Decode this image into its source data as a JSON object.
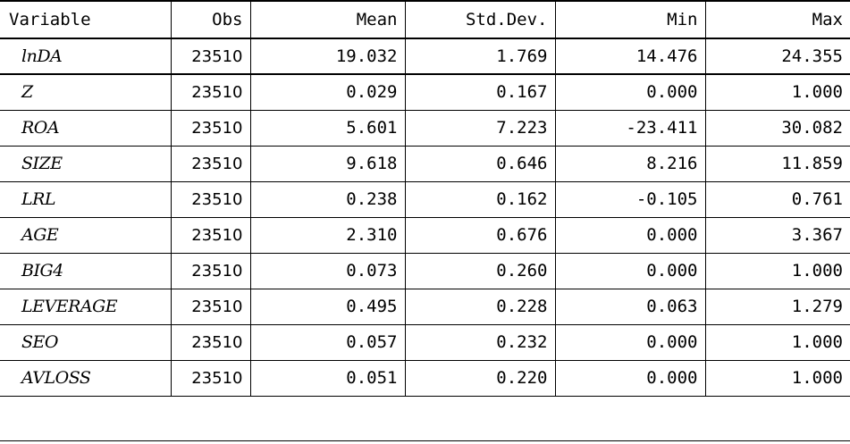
{
  "table": {
    "headers": [
      "Variable",
      "Obs",
      "Mean",
      "Std.Dev.",
      "Min",
      "Max"
    ],
    "rows": [
      {
        "variable": "lnDA",
        "obs": "23510",
        "mean": "19.032",
        "sd": "1.769",
        "min": "14.476",
        "max": "24.355"
      },
      {
        "variable": "Z",
        "obs": "23510",
        "mean": "0.029",
        "sd": "0.167",
        "min": "0.000",
        "max": "1.000"
      },
      {
        "variable": "ROA",
        "obs": "23510",
        "mean": "5.601",
        "sd": "7.223",
        "min": "-23.411",
        "max": "30.082"
      },
      {
        "variable": "SIZE",
        "obs": "23510",
        "mean": "9.618",
        "sd": "0.646",
        "min": "8.216",
        "max": "11.859"
      },
      {
        "variable": "LRL",
        "obs": "23510",
        "mean": "0.238",
        "sd": "0.162",
        "min": "-0.105",
        "max": "0.761"
      },
      {
        "variable": "AGE",
        "obs": "23510",
        "mean": "2.310",
        "sd": "0.676",
        "min": "0.000",
        "max": "3.367"
      },
      {
        "variable": "BIG4",
        "obs": "23510",
        "mean": "0.073",
        "sd": "0.260",
        "min": "0.000",
        "max": "1.000"
      },
      {
        "variable": "LEVERAGE",
        "obs": "23510",
        "mean": "0.495",
        "sd": "0.228",
        "min": "0.063",
        "max": "1.279"
      },
      {
        "variable": "SEO",
        "obs": "23510",
        "mean": "0.057",
        "sd": "0.232",
        "min": "0.000",
        "max": "1.000"
      },
      {
        "variable": "AVLOSS",
        "obs": "23510",
        "mean": "0.051",
        "sd": "0.220",
        "min": "0.000",
        "max": "1.000"
      }
    ]
  }
}
